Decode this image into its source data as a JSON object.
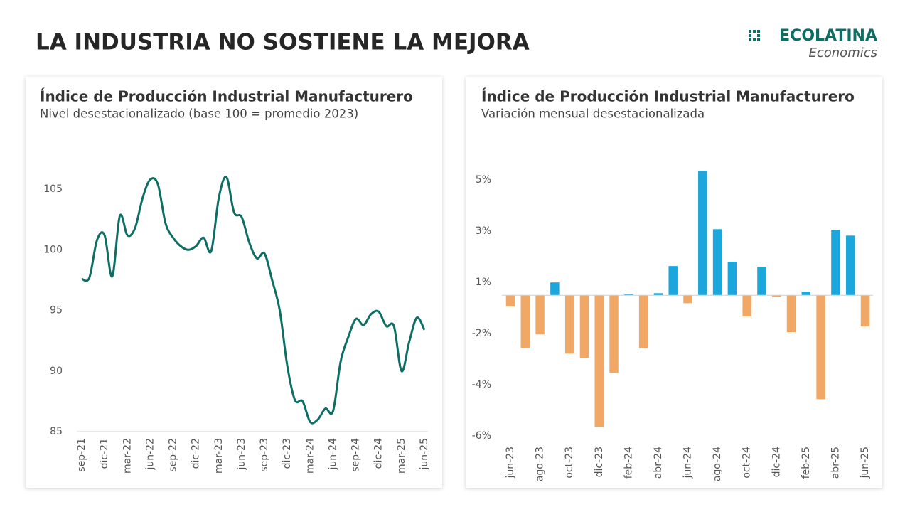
{
  "title": "LA INDUSTRIA NO SOSTIENE LA MEJORA",
  "logo": {
    "name": "ECOLATINA",
    "tagline": "Economics"
  },
  "chart_data": [
    {
      "type": "line",
      "title": "Índice de Producción Industrial Manufacturero",
      "subtitle": "Nivel desestacionalizado (base 100 = promedio 2023)",
      "categories": [
        "sep-21",
        null,
        null,
        "dic-21",
        null,
        null,
        "mar-22",
        null,
        null,
        "jun-22",
        null,
        null,
        "sep-22",
        null,
        null,
        "dic-22",
        null,
        null,
        "mar-23",
        null,
        null,
        "jun-23",
        null,
        null,
        "sep-23",
        null,
        null,
        "dic-23",
        null,
        null,
        "mar-24",
        null,
        null,
        "jun-24",
        null,
        null,
        "sep-24",
        null,
        null,
        "dic-24",
        null,
        null,
        "mar-25",
        null,
        null,
        "jun-25"
      ],
      "values": [
        97.6,
        97.7,
        100.8,
        101.2,
        97.8,
        102.8,
        101.2,
        101.8,
        104.3,
        105.8,
        105.4,
        102.2,
        101.0,
        100.3,
        100.0,
        100.3,
        101.0,
        99.9,
        104.3,
        106.0,
        103.1,
        102.7,
        100.6,
        99.3,
        99.7,
        97.5,
        95.0,
        90.4,
        87.6,
        87.5,
        85.8,
        86.0,
        86.9,
        86.7,
        90.8,
        92.8,
        94.3,
        93.8,
        94.7,
        94.9,
        93.7,
        93.7,
        90.0,
        92.4,
        94.4,
        93.4
      ],
      "color": "#0d6e64",
      "ylim": [
        85,
        108
      ],
      "yticks": [
        85,
        90,
        95,
        100,
        105
      ]
    },
    {
      "type": "bar",
      "title": "Índice de Producción Industrial Manufacturero",
      "subtitle": "Variación mensual desestacionalizada",
      "categories": [
        "jun-23",
        null,
        "ago-23",
        null,
        "oct-23",
        null,
        "dic-23",
        null,
        "feb-24",
        null,
        "abr-24",
        null,
        "jun-24",
        null,
        "ago-24",
        null,
        "oct-24",
        null,
        "dic-24",
        null,
        "feb-25",
        null,
        "abr-25",
        null,
        "jun-25"
      ],
      "values": [
        -0.44,
        -2.06,
        -1.53,
        0.5,
        -2.28,
        -2.44,
        -5.14,
        -3.03,
        0.03,
        -2.08,
        0.08,
        1.14,
        -0.31,
        4.86,
        2.58,
        1.31,
        -0.83,
        1.11,
        -0.06,
        -1.44,
        0.14,
        -4.06,
        2.56,
        2.33,
        -1.22
      ],
      "color_positive": "#1ba6dc",
      "color_negative": "#f1a866",
      "negative_tick_color": "#e02020",
      "ylim": [
        -5.8,
        6.2
      ],
      "yticks": [
        {
          "value": 4.5,
          "label": "5%"
        },
        {
          "value": 2.5,
          "label": "3%"
        },
        {
          "value": 0.5,
          "label": "1%"
        },
        {
          "value": -1.5,
          "label": "-2%"
        },
        {
          "value": -3.5,
          "label": "-4%"
        },
        {
          "value": -5.5,
          "label": "-6%"
        }
      ]
    }
  ]
}
